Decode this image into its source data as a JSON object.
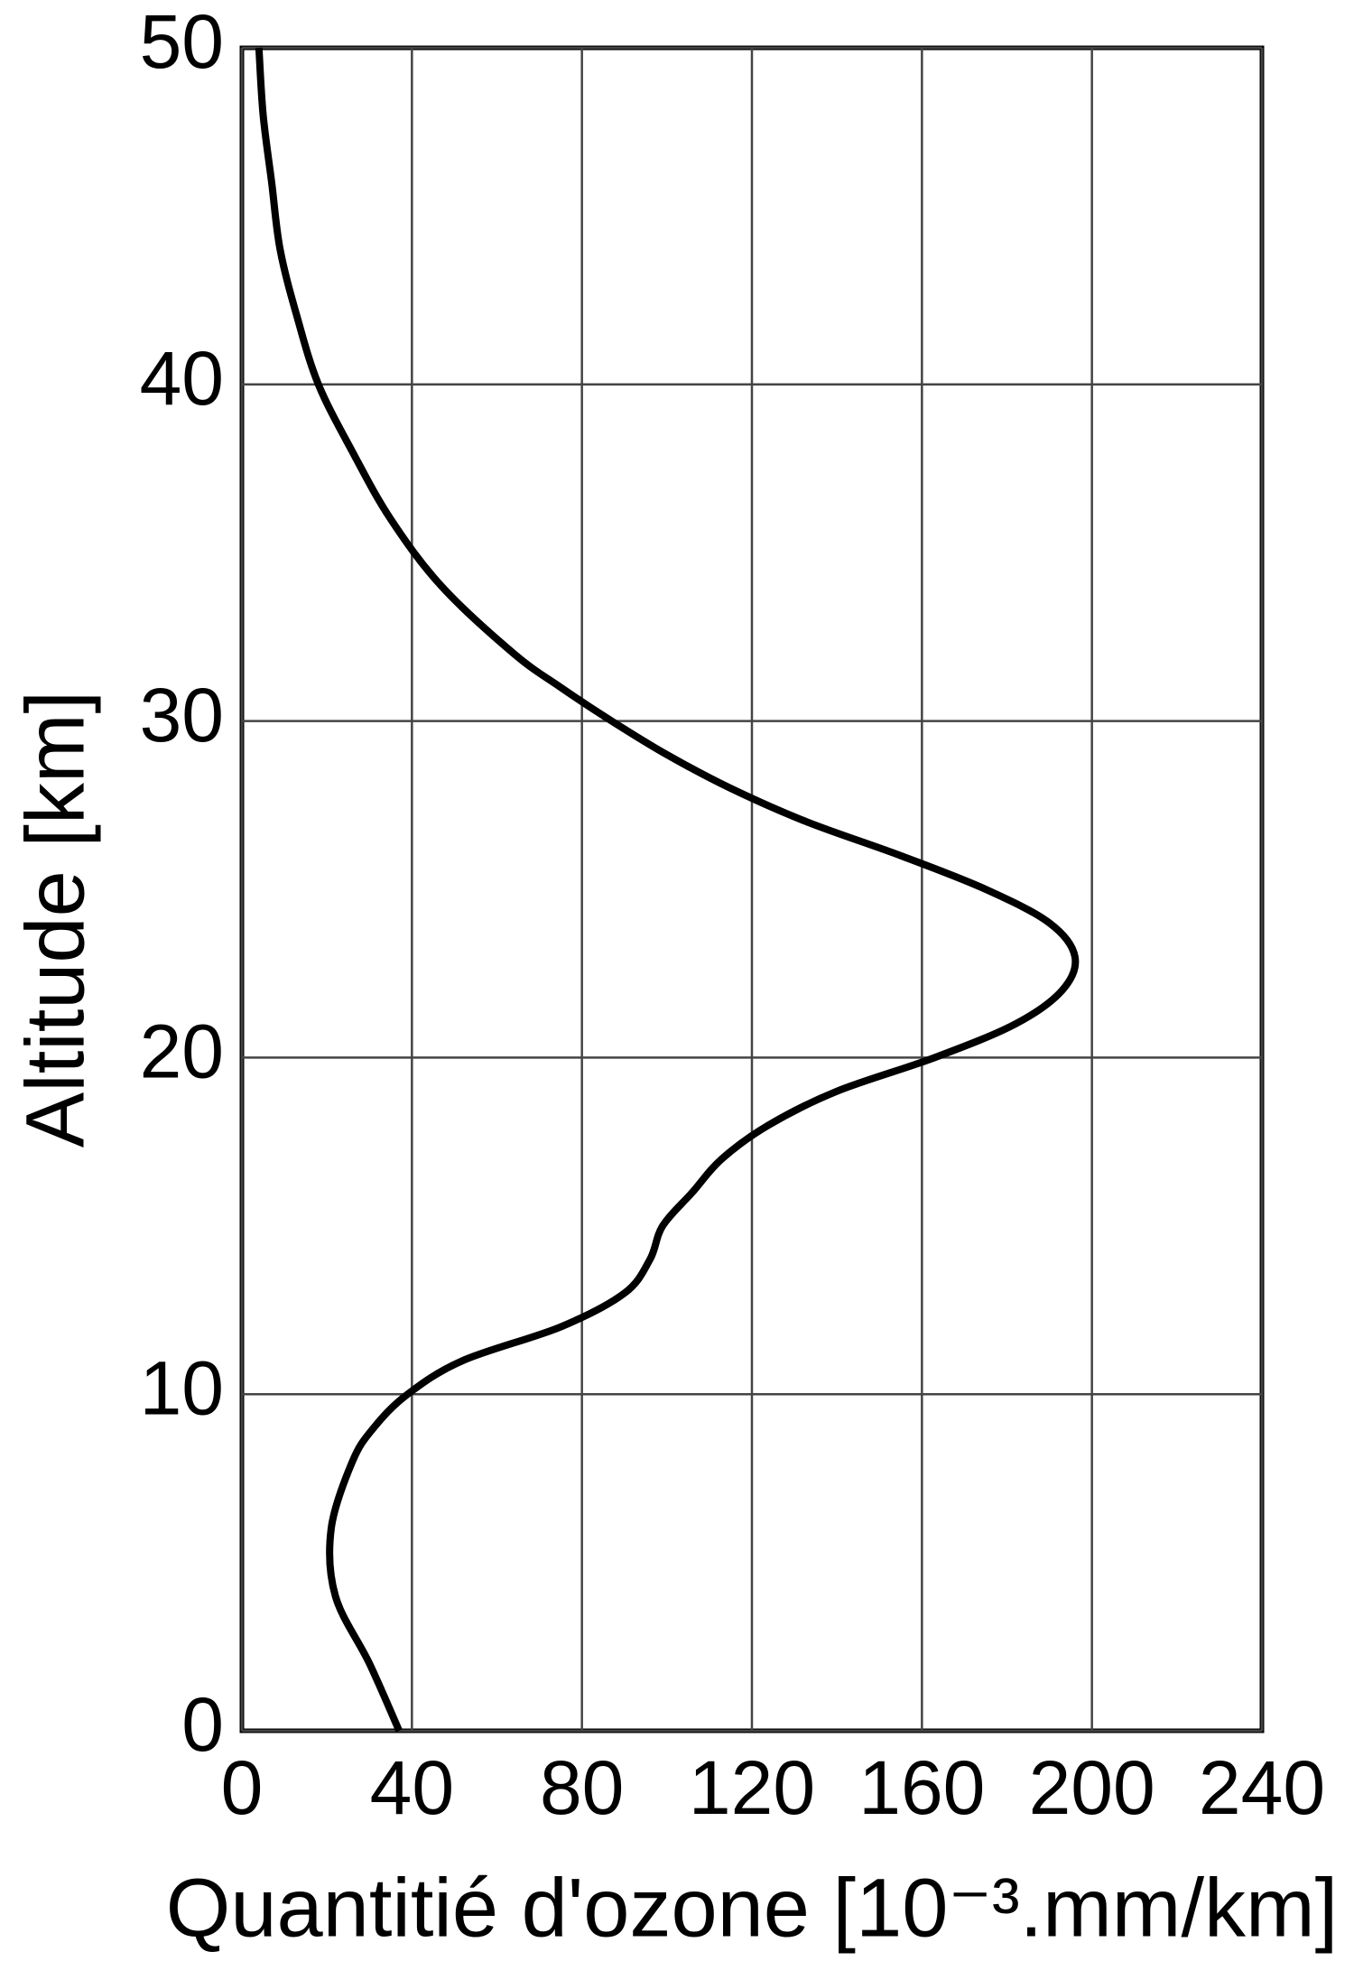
{
  "chart_data": {
    "type": "line",
    "x_label": "Quantitié d'ozone [10⁻³.mm/km]",
    "y_label": "Altitude [km]",
    "x": [
      37,
      30,
      22,
      21,
      26,
      31,
      39,
      52,
      75,
      90,
      96,
      99,
      106,
      113,
      124,
      140,
      163,
      182,
      193,
      196,
      190,
      175,
      155,
      133,
      115,
      100,
      87,
      75,
      64,
      47,
      35,
      26,
      18,
      13,
      9,
      7,
      5,
      4
    ],
    "values": [
      0,
      2,
      4,
      6,
      8,
      9,
      10,
      11,
      12,
      13,
      14,
      15,
      16,
      17,
      18,
      19,
      20,
      21,
      22,
      23,
      24,
      25,
      26,
      27,
      28,
      29,
      30,
      31,
      32,
      34,
      36,
      38,
      40,
      42,
      44,
      46,
      48,
      50
    ],
    "color": "#000000",
    "xlim": [
      0,
      240
    ],
    "xticks": [
      0,
      40,
      80,
      120,
      160,
      200,
      240
    ],
    "ylim": [
      0,
      50
    ],
    "yticks": [
      0,
      10,
      20,
      30,
      40,
      50
    ],
    "grid": true
  }
}
